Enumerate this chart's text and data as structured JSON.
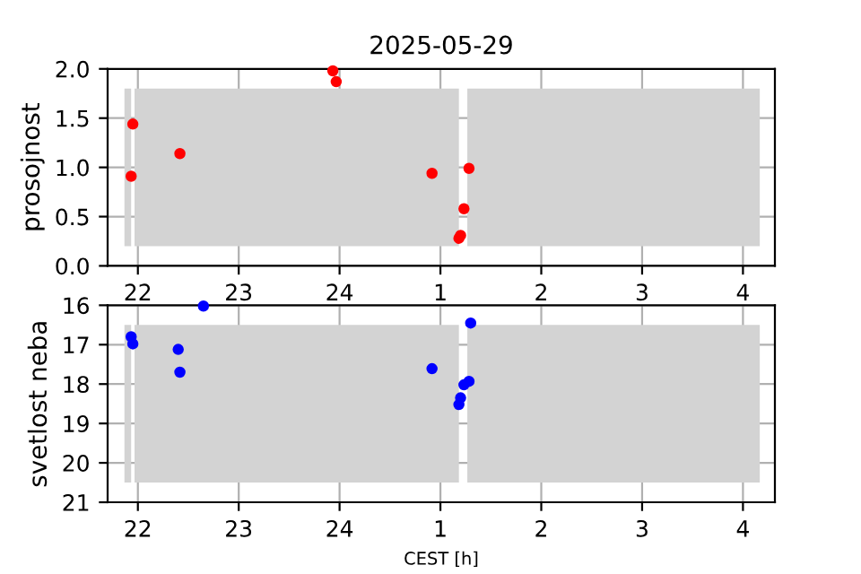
{
  "chart_data": [
    {
      "type": "scatter",
      "title": "2025-05-29",
      "ylabel": "prosojnost",
      "x": [
        "2025-05-29T21:56",
        "2025-05-29T21:57",
        "2025-05-29T22:25",
        "2025-05-29T23:56",
        "2025-05-29T23:58",
        "2025-05-30T00:55",
        "2025-05-30T01:11",
        "2025-05-30T01:12",
        "2025-05-30T01:14",
        "2025-05-30T01:17"
      ],
      "series": [
        {
          "color": "#ff0000",
          "values": [
            0.91,
            1.44,
            1.14,
            1.98,
            1.87,
            0.94,
            0.28,
            0.31,
            0.58,
            0.99
          ]
        }
      ],
      "xlim": [
        "2025-05-29T21:42",
        "2025-05-30T04:19"
      ],
      "xticks": [
        {
          "value": "2025-05-29T22:00",
          "label": "22"
        },
        {
          "value": "2025-05-29T23:00",
          "label": "23"
        },
        {
          "value": "2025-05-30T00:00",
          "label": "24"
        },
        {
          "value": "2025-05-30T01:00",
          "label": "1"
        },
        {
          "value": "2025-05-30T02:00",
          "label": "2"
        },
        {
          "value": "2025-05-30T03:00",
          "label": "3"
        },
        {
          "value": "2025-05-30T04:00",
          "label": "4"
        }
      ],
      "ylim": [
        0,
        2
      ],
      "yticks": [
        {
          "value": 0,
          "label": "0.0"
        },
        {
          "value": 0.5,
          "label": "0.5"
        },
        {
          "value": 1,
          "label": "1.0"
        },
        {
          "value": 1.5,
          "label": "1.5"
        },
        {
          "value": 2,
          "label": "2.0"
        }
      ],
      "bands": [
        {
          "axis": "x",
          "from": "2025-05-29T21:52",
          "to": "2025-05-29T21:56",
          "color": "#d3d3d3"
        },
        {
          "axis": "x",
          "from": "2025-05-29T21:58",
          "to": "2025-05-30T01:11",
          "color": "#d3d3d3"
        },
        {
          "axis": "x",
          "from": "2025-05-30T01:16",
          "to": "2025-05-30T04:10",
          "color": "#d3d3d3"
        }
      ],
      "grid": true,
      "marker": "circle"
    },
    {
      "type": "scatter",
      "ylabel": "svetlost neba",
      "xlabel": "CEST [h]",
      "x": [
        "2025-05-29T22:39",
        "2025-05-29T21:56",
        "2025-05-29T21:57",
        "2025-05-29T22:24",
        "2025-05-29T22:25",
        "2025-05-30T00:55",
        "2025-05-30T01:11",
        "2025-05-30T01:12",
        "2025-05-30T01:14",
        "2025-05-30T01:17",
        "2025-05-30T01:18"
      ],
      "series": [
        {
          "color": "#0000ff",
          "values": [
            16.02,
            16.8,
            16.98,
            17.12,
            17.7,
            17.61,
            18.52,
            18.35,
            18.02,
            17.93,
            16.45
          ]
        }
      ],
      "xlim": [
        "2025-05-29T21:42",
        "2025-05-30T04:19"
      ],
      "xticks": [
        {
          "value": "2025-05-29T22:00",
          "label": "22"
        },
        {
          "value": "2025-05-29T23:00",
          "label": "23"
        },
        {
          "value": "2025-05-30T00:00",
          "label": "24"
        },
        {
          "value": "2025-05-30T01:00",
          "label": "1"
        },
        {
          "value": "2025-05-30T02:00",
          "label": "2"
        },
        {
          "value": "2025-05-30T03:00",
          "label": "3"
        },
        {
          "value": "2025-05-30T04:00",
          "label": "4"
        }
      ],
      "ylim": [
        21,
        16
      ],
      "yticks": [
        16,
        17,
        18,
        19,
        20,
        21
      ],
      "bands": [
        {
          "axis": "x",
          "from": "2025-05-29T21:52",
          "to": "2025-05-29T21:56",
          "color": "#d3d3d3"
        },
        {
          "axis": "x",
          "from": "2025-05-29T21:58",
          "to": "2025-05-30T01:11",
          "color": "#d3d3d3"
        },
        {
          "axis": "x",
          "from": "2025-05-30T01:16",
          "to": "2025-05-30T04:10",
          "color": "#d3d3d3"
        }
      ],
      "grid": true,
      "marker": "circle"
    }
  ]
}
